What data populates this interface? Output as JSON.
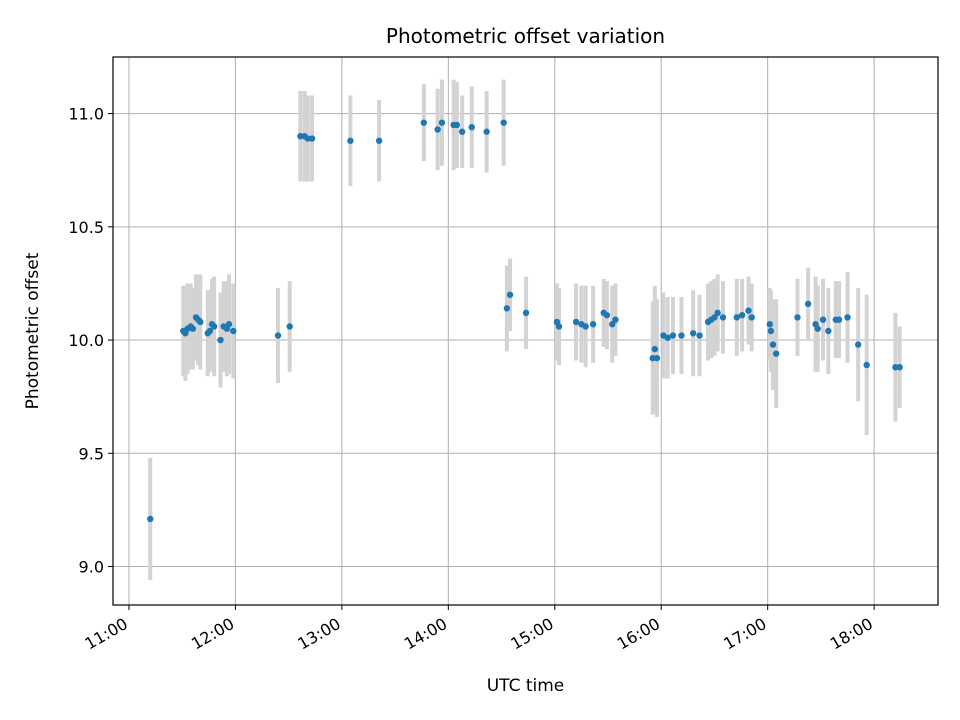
{
  "chart_data": {
    "type": "scatter",
    "title": "Photometric offset variation",
    "xlabel": "UTC time",
    "ylabel": "Photometric offset",
    "x_unit": "hours (UTC)",
    "xlim": [
      10.85,
      18.6
    ],
    "ylim": [
      8.83,
      11.25
    ],
    "x_ticks": [
      11,
      12,
      13,
      14,
      15,
      16,
      17,
      18
    ],
    "x_tick_labels": [
      "11:00",
      "12:00",
      "13:00",
      "14:00",
      "15:00",
      "16:00",
      "17:00",
      "18:00"
    ],
    "y_ticks": [
      9.0,
      9.5,
      10.0,
      10.5,
      11.0
    ],
    "y_tick_labels": [
      "9.0",
      "9.5",
      "10.0",
      "10.5",
      "11.0"
    ],
    "grid": true,
    "series": [
      {
        "point_color": "#1f77b4",
        "errorbar_color": "#d3d3d3",
        "x": [
          11.2,
          11.51,
          11.53,
          11.55,
          11.58,
          11.6,
          11.63,
          11.65,
          11.67,
          11.74,
          11.76,
          11.78,
          11.8,
          11.86,
          11.89,
          11.92,
          11.94,
          11.98,
          12.4,
          12.51,
          12.61,
          12.65,
          12.68,
          12.72,
          13.08,
          13.35,
          13.77,
          13.9,
          13.94,
          14.05,
          14.08,
          14.13,
          14.22,
          14.36,
          14.52,
          14.55,
          14.58,
          14.73,
          15.02,
          15.04,
          15.2,
          15.25,
          15.29,
          15.36,
          15.46,
          15.49,
          15.54,
          15.57,
          15.92,
          15.94,
          15.96,
          16.02,
          16.06,
          16.11,
          16.19,
          16.3,
          16.36,
          16.44,
          16.47,
          16.5,
          16.53,
          16.58,
          16.71,
          16.76,
          16.82,
          16.85,
          17.02,
          17.03,
          17.05,
          17.08,
          17.28,
          17.38,
          17.45,
          17.47,
          17.52,
          17.57,
          17.64,
          17.67,
          17.75,
          17.85,
          17.93,
          18.2,
          18.24
        ],
        "y": [
          9.21,
          10.04,
          10.03,
          10.05,
          10.06,
          10.05,
          10.1,
          10.09,
          10.08,
          10.03,
          10.04,
          10.07,
          10.06,
          10.0,
          10.06,
          10.05,
          10.07,
          10.04,
          10.02,
          10.06,
          10.9,
          10.9,
          10.89,
          10.89,
          10.88,
          10.88,
          10.96,
          10.93,
          10.96,
          10.95,
          10.95,
          10.92,
          10.94,
          10.92,
          10.96,
          10.14,
          10.2,
          10.12,
          10.08,
          10.06,
          10.08,
          10.07,
          10.06,
          10.07,
          10.12,
          10.11,
          10.07,
          10.09,
          9.92,
          9.96,
          9.92,
          10.02,
          10.01,
          10.02,
          10.02,
          10.03,
          10.02,
          10.08,
          10.09,
          10.1,
          10.12,
          10.1,
          10.1,
          10.11,
          10.13,
          10.1,
          10.07,
          10.04,
          9.98,
          9.94,
          10.1,
          10.16,
          10.07,
          10.05,
          10.09,
          10.04,
          10.09,
          10.09,
          10.1,
          9.98,
          9.89,
          9.88,
          9.88
        ],
        "error": [
          0.27,
          0.2,
          0.21,
          0.2,
          0.19,
          0.18,
          0.19,
          0.2,
          0.21,
          0.19,
          0.18,
          0.2,
          0.22,
          0.21,
          0.2,
          0.21,
          0.22,
          0.21,
          0.21,
          0.2,
          0.2,
          0.2,
          0.19,
          0.19,
          0.2,
          0.18,
          0.17,
          0.18,
          0.19,
          0.2,
          0.19,
          0.16,
          0.18,
          0.18,
          0.19,
          0.19,
          0.16,
          0.16,
          0.17,
          0.17,
          0.17,
          0.17,
          0.18,
          0.17,
          0.15,
          0.15,
          0.17,
          0.16,
          0.25,
          0.28,
          0.26,
          0.19,
          0.18,
          0.17,
          0.17,
          0.19,
          0.18,
          0.17,
          0.17,
          0.17,
          0.17,
          0.16,
          0.17,
          0.16,
          0.15,
          0.15,
          0.16,
          0.18,
          0.2,
          0.24,
          0.17,
          0.16,
          0.21,
          0.19,
          0.18,
          0.19,
          0.17,
          0.17,
          0.2,
          0.25,
          0.31,
          0.24,
          0.18
        ]
      }
    ]
  }
}
